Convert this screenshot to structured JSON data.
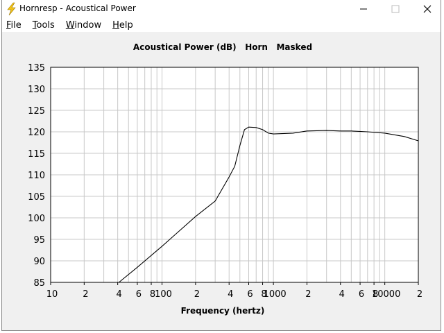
{
  "window": {
    "title": "Hornresp - Acoustical Power",
    "menu": [
      "File",
      "Tools",
      "Window",
      "Help"
    ]
  },
  "chart_data": {
    "type": "line",
    "title": "Acoustical Power (dB)   Horn   Masked",
    "x_label": "Frequency (hertz)",
    "x": [
      41,
      60,
      100,
      200,
      300,
      400,
      450,
      500,
      550,
      600,
      700,
      800,
      900,
      1000,
      1500,
      2000,
      3000,
      4000,
      5000,
      7000,
      10000,
      15000,
      20000
    ],
    "values": [
      85,
      88.5,
      93.4,
      100.3,
      103.9,
      109.5,
      112,
      116.8,
      120.5,
      121.1,
      121,
      120.5,
      119.7,
      119.5,
      119.7,
      120.2,
      120.3,
      120.2,
      120.2,
      120,
      119.7,
      118.9,
      117.9
    ],
    "color": "#000000",
    "log_x": true,
    "xlim": [
      10,
      20000
    ],
    "ylim": [
      85,
      135
    ],
    "xticks": [
      10,
      {
        "value": 20,
        "label": "2"
      },
      {
        "value": 40,
        "label": "4"
      },
      {
        "value": 60,
        "label": "6"
      },
      {
        "value": 80,
        "label": "8"
      },
      100,
      {
        "value": 200,
        "label": "2"
      },
      {
        "value": 400,
        "label": "4"
      },
      {
        "value": 600,
        "label": "6"
      },
      {
        "value": 800,
        "label": "8"
      },
      1000,
      {
        "value": 2000,
        "label": "2"
      },
      {
        "value": 4000,
        "label": "4"
      },
      {
        "value": 6000,
        "label": "6"
      },
      {
        "value": 8000,
        "label": "8"
      },
      10000,
      {
        "value": 20000,
        "label": "2"
      }
    ],
    "x_grid": [
      20,
      30,
      40,
      50,
      60,
      70,
      80,
      90,
      100,
      200,
      300,
      400,
      500,
      600,
      700,
      800,
      900,
      1000,
      2000,
      3000,
      4000,
      5000,
      6000,
      7000,
      8000,
      9000,
      10000
    ],
    "yticks": [
      85,
      90,
      95,
      100,
      105,
      110,
      115,
      120,
      125,
      130,
      135
    ],
    "grid": true
  }
}
